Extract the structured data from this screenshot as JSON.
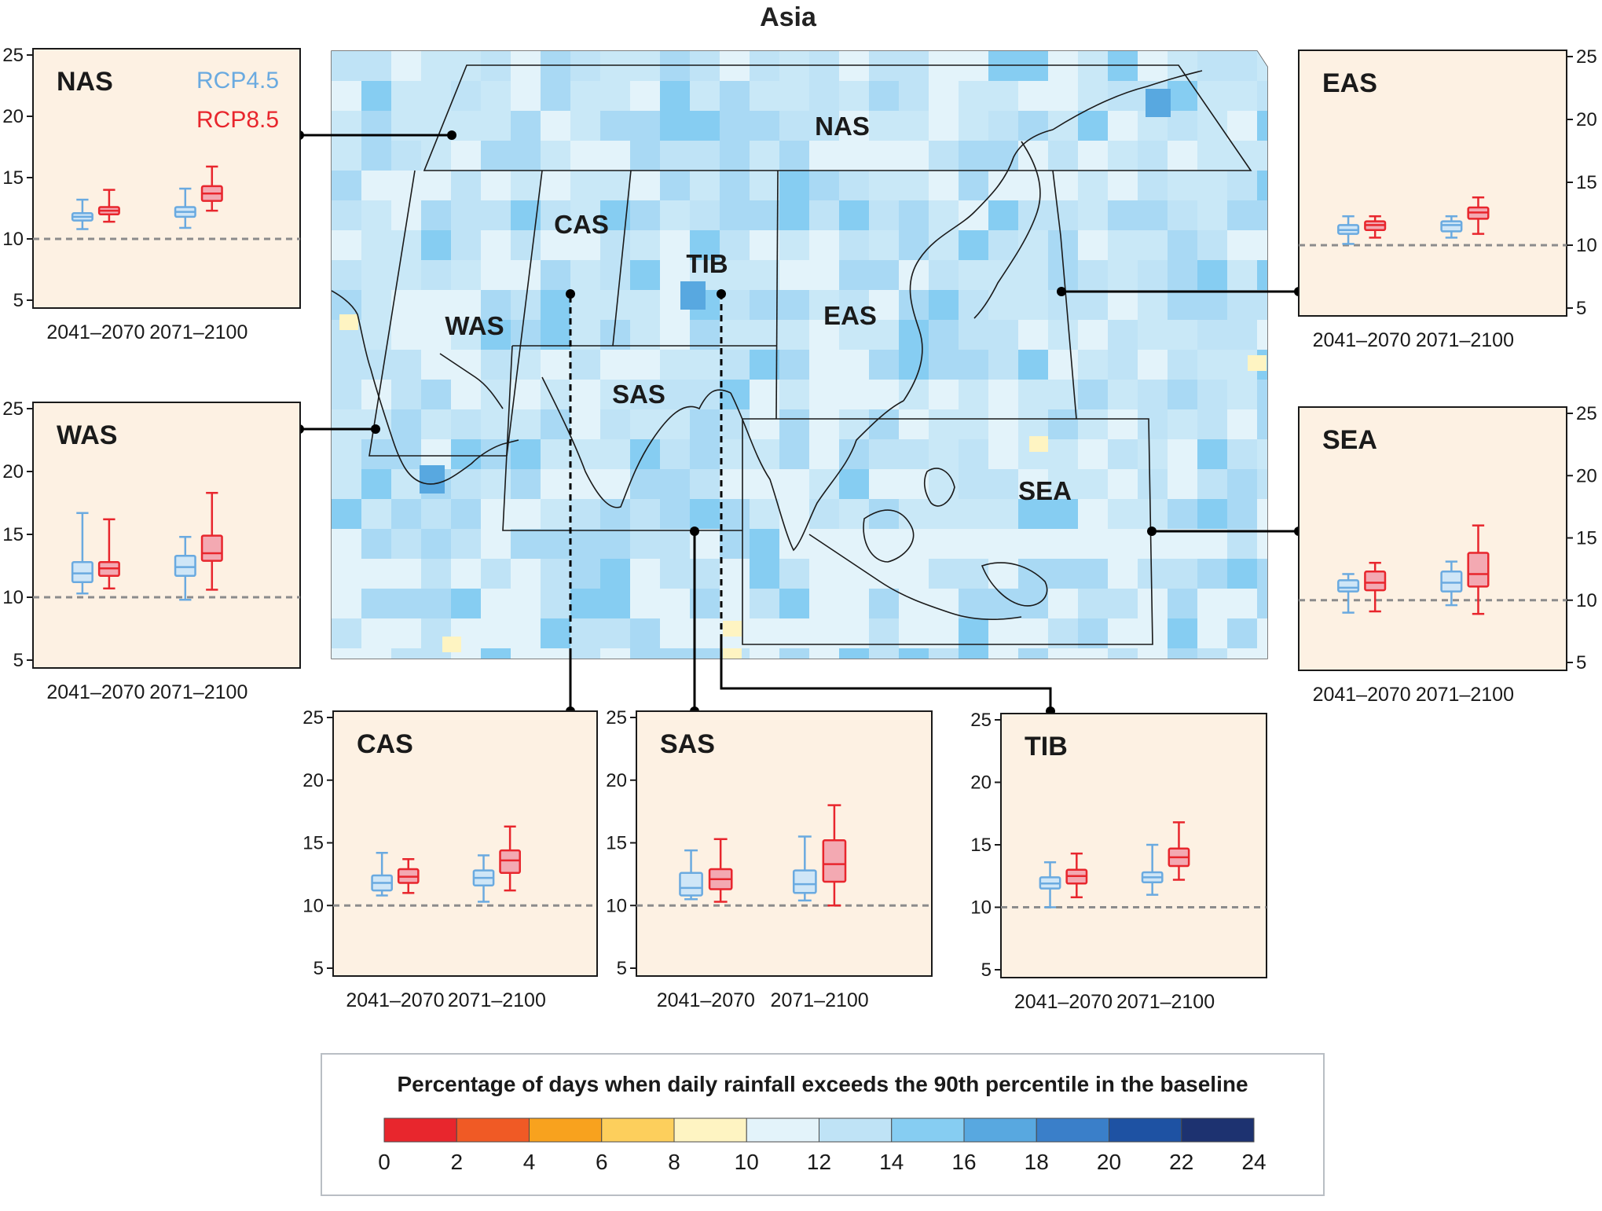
{
  "page": {
    "title": "Asia"
  },
  "colors": {
    "rcp45": "#6aaae0",
    "rcp45_fill": "#cfe6f7",
    "rcp85": "#e8262d",
    "rcp85_fill": "#f3a9b2",
    "panel_bg": "#fdf1e3",
    "baseline": "#8c8c8c"
  },
  "legend": {
    "rcp45": "RCP4.5",
    "rcp85": "RCP8.5"
  },
  "map": {
    "regions": [
      "NAS",
      "CAS",
      "TIB",
      "WAS",
      "EAS",
      "SAS",
      "SEA"
    ]
  },
  "colorbar": {
    "title": "Percentage of days when daily rainfall exceeds the 90th percentile in the baseline",
    "ticks": [
      "0",
      "2",
      "4",
      "6",
      "8",
      "10",
      "12",
      "14",
      "16",
      "18",
      "20",
      "22",
      "24"
    ],
    "colors": [
      "#e8262d",
      "#f05a25",
      "#f8a21e",
      "#fdcf5c",
      "#fef4c2",
      "#e3f3fa",
      "#bfe3f6",
      "#86cdf2",
      "#58a8e0",
      "#3a7fc9",
      "#1e52a3",
      "#1d3270"
    ]
  },
  "chart_data": {
    "type": "box",
    "ylim": [
      5,
      25
    ],
    "yticks": [
      "5",
      "10",
      "15",
      "20",
      "25"
    ],
    "baseline": 10,
    "periods": [
      "2041–2070",
      "2071–2100"
    ],
    "panels": [
      {
        "region": "NAS",
        "boxes": [
          {
            "period": "2041–2070",
            "scenario": "RCP4.5",
            "whislo": 10.8,
            "q1": 11.5,
            "med": 11.8,
            "q3": 12.1,
            "whishi": 13.2
          },
          {
            "period": "2041–2070",
            "scenario": "RCP8.5",
            "whislo": 11.4,
            "q1": 12.0,
            "med": 12.3,
            "q3": 12.6,
            "whishi": 14.0
          },
          {
            "period": "2071–2100",
            "scenario": "RCP4.5",
            "whislo": 10.9,
            "q1": 11.8,
            "med": 12.2,
            "q3": 12.6,
            "whishi": 14.1
          },
          {
            "period": "2071–2100",
            "scenario": "RCP8.5",
            "whislo": 12.3,
            "q1": 13.1,
            "med": 13.7,
            "q3": 14.3,
            "whishi": 15.9
          }
        ]
      },
      {
        "region": "WAS",
        "boxes": [
          {
            "period": "2041–2070",
            "scenario": "RCP4.5",
            "whislo": 10.3,
            "q1": 11.2,
            "med": 11.9,
            "q3": 12.8,
            "whishi": 16.7
          },
          {
            "period": "2041–2070",
            "scenario": "RCP8.5",
            "whislo": 10.7,
            "q1": 11.7,
            "med": 12.3,
            "q3": 12.8,
            "whishi": 16.2
          },
          {
            "period": "2071–2100",
            "scenario": "RCP4.5",
            "whislo": 9.8,
            "q1": 11.7,
            "med": 12.4,
            "q3": 13.3,
            "whishi": 14.8
          },
          {
            "period": "2071–2100",
            "scenario": "RCP8.5",
            "whislo": 10.6,
            "q1": 12.9,
            "med": 13.5,
            "q3": 14.9,
            "whishi": 18.3
          }
        ]
      },
      {
        "region": "EAS",
        "boxes": [
          {
            "period": "2041–2070",
            "scenario": "RCP4.5",
            "whislo": 10.1,
            "q1": 10.9,
            "med": 11.2,
            "q3": 11.6,
            "whishi": 12.3
          },
          {
            "period": "2041–2070",
            "scenario": "RCP8.5",
            "whislo": 10.6,
            "q1": 11.2,
            "med": 11.6,
            "q3": 11.9,
            "whishi": 12.3
          },
          {
            "period": "2071–2100",
            "scenario": "RCP4.5",
            "whislo": 10.6,
            "q1": 11.1,
            "med": 11.6,
            "q3": 11.9,
            "whishi": 12.3
          },
          {
            "period": "2071–2100",
            "scenario": "RCP8.5",
            "whislo": 10.9,
            "q1": 12.1,
            "med": 12.6,
            "q3": 13.0,
            "whishi": 13.8
          }
        ]
      },
      {
        "region": "SEA",
        "boxes": [
          {
            "period": "2041–2070",
            "scenario": "RCP4.5",
            "whislo": 9.0,
            "q1": 10.7,
            "med": 11.0,
            "q3": 11.6,
            "whishi": 12.1
          },
          {
            "period": "2041–2070",
            "scenario": "RCP8.5",
            "whislo": 9.1,
            "q1": 10.8,
            "med": 11.4,
            "q3": 12.3,
            "whishi": 13.0
          },
          {
            "period": "2071–2100",
            "scenario": "RCP4.5",
            "whislo": 9.6,
            "q1": 10.7,
            "med": 11.4,
            "q3": 12.3,
            "whishi": 13.1
          },
          {
            "period": "2071–2100",
            "scenario": "RCP8.5",
            "whislo": 8.9,
            "q1": 11.1,
            "med": 12.1,
            "q3": 13.8,
            "whishi": 16.0
          }
        ]
      },
      {
        "region": "CAS",
        "boxes": [
          {
            "period": "2041–2070",
            "scenario": "RCP4.5",
            "whislo": 10.8,
            "q1": 11.2,
            "med": 11.8,
            "q3": 12.4,
            "whishi": 14.2
          },
          {
            "period": "2041–2070",
            "scenario": "RCP8.5",
            "whislo": 11.0,
            "q1": 11.8,
            "med": 12.3,
            "q3": 12.9,
            "whishi": 13.7
          },
          {
            "period": "2071–2100",
            "scenario": "RCP4.5",
            "whislo": 10.3,
            "q1": 11.6,
            "med": 12.2,
            "q3": 12.8,
            "whishi": 14.0
          },
          {
            "period": "2071–2100",
            "scenario": "RCP8.5",
            "whislo": 11.2,
            "q1": 12.6,
            "med": 13.6,
            "q3": 14.4,
            "whishi": 16.3
          }
        ]
      },
      {
        "region": "SAS",
        "boxes": [
          {
            "period": "2041–2070",
            "scenario": "RCP4.5",
            "whislo": 10.5,
            "q1": 10.8,
            "med": 11.4,
            "q3": 12.6,
            "whishi": 14.4
          },
          {
            "period": "2041–2070",
            "scenario": "RCP8.5",
            "whislo": 10.3,
            "q1": 11.3,
            "med": 12.1,
            "q3": 12.9,
            "whishi": 15.3
          },
          {
            "period": "2071–2100",
            "scenario": "RCP4.5",
            "whislo": 10.4,
            "q1": 11.0,
            "med": 11.7,
            "q3": 12.8,
            "whishi": 15.5
          },
          {
            "period": "2071–2100",
            "scenario": "RCP8.5",
            "whislo": 10.0,
            "q1": 11.9,
            "med": 13.3,
            "q3": 15.2,
            "whishi": 18.0
          }
        ]
      },
      {
        "region": "TIB",
        "boxes": [
          {
            "period": "2041–2070",
            "scenario": "RCP4.5",
            "whislo": 10.0,
            "q1": 11.5,
            "med": 11.9,
            "q3": 12.4,
            "whishi": 13.6
          },
          {
            "period": "2041–2070",
            "scenario": "RCP8.5",
            "whislo": 10.8,
            "q1": 11.9,
            "med": 12.5,
            "q3": 13.0,
            "whishi": 14.3
          },
          {
            "period": "2071–2100",
            "scenario": "RCP4.5",
            "whislo": 11.0,
            "q1": 12.0,
            "med": 12.4,
            "q3": 12.8,
            "whishi": 15.0
          },
          {
            "period": "2071–2100",
            "scenario": "RCP8.5",
            "whislo": 12.2,
            "q1": 13.3,
            "med": 14.0,
            "q3": 14.7,
            "whishi": 16.8
          }
        ]
      }
    ]
  }
}
